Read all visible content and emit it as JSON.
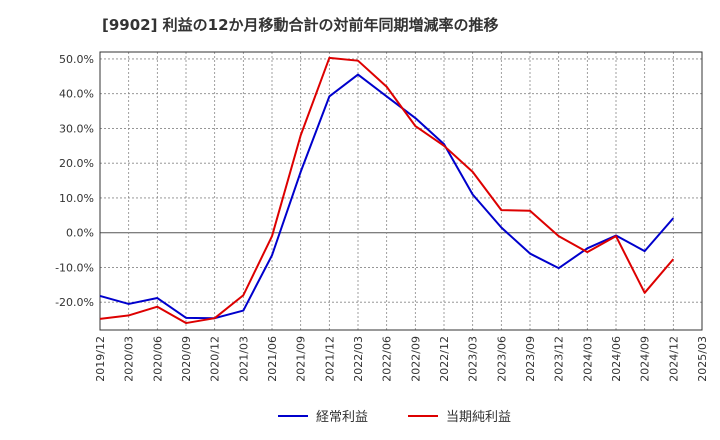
{
  "chart_data": {
    "type": "line",
    "title": "[9902]  利益の12か月移動合計の対前年同期増減率の推移",
    "xlabel": "",
    "ylabel": "",
    "ylim": [
      -28,
      52
    ],
    "yticks": [
      50,
      40,
      30,
      20,
      10,
      0,
      -10,
      -20
    ],
    "ytick_labels": [
      "50.0%",
      "40.0%",
      "30.0%",
      "20.0%",
      "10.0%",
      "0.0%",
      "-10.0%",
      "-20.0%"
    ],
    "categories": [
      "2019/12",
      "2020/03",
      "2020/06",
      "2020/09",
      "2020/12",
      "2021/03",
      "2021/06",
      "2021/09",
      "2021/12",
      "2022/03",
      "2022/06",
      "2022/09",
      "2022/12",
      "2023/03",
      "2023/06",
      "2023/09",
      "2023/12",
      "2024/03",
      "2024/06",
      "2024/09",
      "2024/12",
      "2025/03"
    ],
    "grid": true,
    "legend_position": "bottom",
    "series": [
      {
        "name": "経常利益",
        "color": "#0000cc",
        "values": [
          -18.2,
          -20.5,
          -18.8,
          -24.5,
          -24.6,
          -22.4,
          -6.5,
          17.5,
          39.2,
          45.5,
          39.2,
          33.0,
          25.5,
          11.0,
          1.5,
          -6.0,
          -10.2,
          -4.5,
          -0.8,
          -5.3,
          4.2,
          null
        ]
      },
      {
        "name": "当期純利益",
        "color": "#dd0000",
        "values": [
          -24.8,
          -23.8,
          -21.3,
          -26.0,
          -24.6,
          -18.0,
          -1.0,
          28.0,
          50.3,
          49.5,
          42.0,
          30.7,
          25.0,
          17.5,
          6.5,
          6.3,
          -1.0,
          -5.6,
          -1.0,
          -17.3,
          -7.6,
          null
        ]
      }
    ]
  }
}
